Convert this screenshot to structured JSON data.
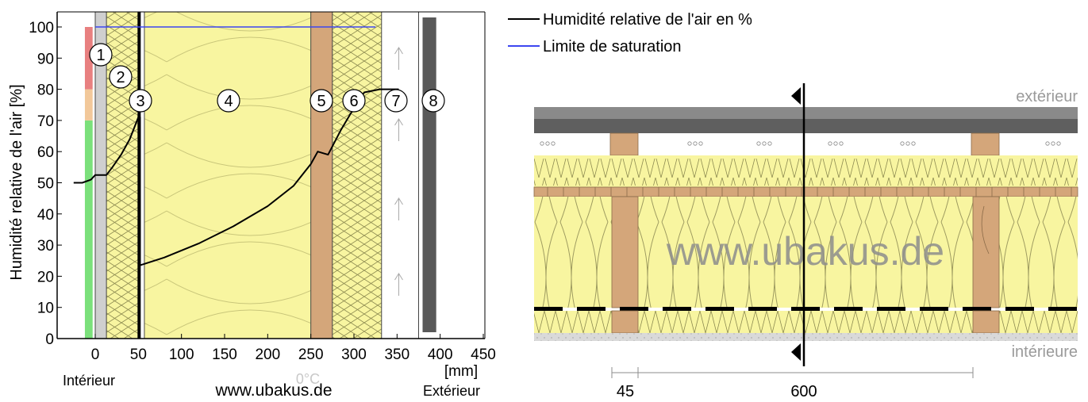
{
  "chart_data": {
    "type": "line",
    "ylabel": "Humidité relative de l'air [%]",
    "xunit": "[mm]",
    "ylim": [
      0,
      105
    ],
    "xlim": [
      -25,
      450
    ],
    "y_ticks": [
      "0",
      "10",
      "20",
      "30",
      "40",
      "50",
      "60",
      "70",
      "80",
      "90",
      "100"
    ],
    "x_ticks": [
      "0",
      "50",
      "100",
      "150",
      "200",
      "250",
      "300",
      "350",
      "400",
      "450"
    ],
    "legend_placement": "top-right",
    "series": [
      {
        "name": "Humidité relative de l'air en %",
        "color": "#000000",
        "points": [
          [
            -25,
            50
          ],
          [
            -15,
            50
          ],
          [
            -5,
            51
          ],
          [
            0,
            52.5
          ],
          [
            13,
            52.5
          ],
          [
            20,
            55
          ],
          [
            30,
            59
          ],
          [
            40,
            64
          ],
          [
            50,
            71
          ],
          [
            52,
            71
          ],
          [
            52,
            23.5
          ],
          [
            80,
            26
          ],
          [
            120,
            30.5
          ],
          [
            160,
            36
          ],
          [
            200,
            42.5
          ],
          [
            230,
            49
          ],
          [
            250,
            56
          ],
          [
            258,
            60
          ],
          [
            270,
            59
          ],
          [
            285,
            67
          ],
          [
            300,
            74
          ],
          [
            312,
            79
          ],
          [
            330,
            80
          ],
          [
            352,
            80
          ]
        ]
      },
      {
        "name": "Limite de saturation",
        "color": "#3c46f0",
        "points": [
          [
            0,
            100
          ],
          [
            325,
            100
          ]
        ]
      }
    ],
    "comfort_bands": [
      {
        "from": 0,
        "to": 70,
        "color": "#7be07b"
      },
      {
        "from": 70,
        "to": 80,
        "color": "#f2c89a"
      },
      {
        "from": 80,
        "to": 100,
        "color": "#e88080"
      }
    ],
    "layers": [
      {
        "number": "1",
        "from": 0,
        "to": 13
      },
      {
        "number": "2",
        "from": 13,
        "to": 50
      },
      {
        "number": "3",
        "from": 50,
        "to": 57
      },
      {
        "number": "4",
        "from": 57,
        "to": 250
      },
      {
        "number": "5",
        "from": 250,
        "to": 275
      },
      {
        "number": "6",
        "from": 275,
        "to": 332
      },
      {
        "number": "7",
        "from": 332,
        "to": 375
      },
      {
        "number": "8",
        "from": 375,
        "to": 400
      }
    ],
    "annotations": {
      "inside": "Intérieur",
      "outside": "Extérieur",
      "watermark": "www.ubakus.de",
      "zero_degree": "0°C"
    }
  },
  "section": {
    "outside_label": "extérieur",
    "inside_label": "intérieure",
    "watermark": "www.ubakus.de",
    "dim_left": "45",
    "dim_right": "600",
    "colors": {
      "insulation": "#f8f5a0",
      "timber": "#d4a67a",
      "roof": "#6e6e6e",
      "plaster": "#d9d9d9"
    }
  }
}
